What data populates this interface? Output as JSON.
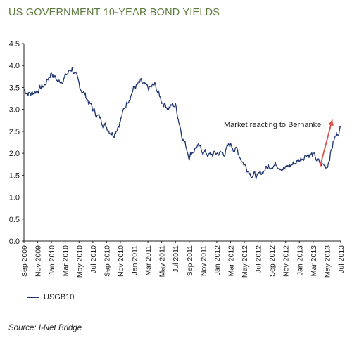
{
  "chart_data": {
    "type": "line",
    "title": "US GOVERNMENT 10-YEAR BOND YIELDS",
    "ylim": [
      0,
      4.5
    ],
    "yticks": [
      "0.0",
      "0.5",
      "1.0",
      "1.5",
      "2.0",
      "2.5",
      "3.0",
      "3.5",
      "4.0",
      "4.5"
    ],
    "yticks_values": [
      0,
      0.5,
      1.0,
      1.5,
      2.0,
      2.5,
      3.0,
      3.5,
      4.0,
      4.5
    ],
    "xticks": [
      "Sep 2009",
      "Nov 2009",
      "Jan 2010",
      "Mar 2010",
      "May 2010",
      "Jul 2010",
      "Sep 2010",
      "Nov 2010",
      "Jan 2011",
      "Mar 2011",
      "May 2011",
      "Jul 2011",
      "Sep 2011",
      "Nov 2011",
      "Jan 2012",
      "Mar 2012",
      "May 2012",
      "Jul 2012",
      "Sep 2012",
      "Nov 2012",
      "Jan 2013",
      "Mar 2013",
      "May 2013",
      "Jul 2013"
    ],
    "grid": false,
    "legend_position": "bottom-left",
    "series": [
      {
        "name": "USGB10",
        "color": "#1f3570",
        "x": [
          "Sep 2009",
          "Oct 2009",
          "Nov 2009",
          "Dec 2009",
          "Jan 2010",
          "Feb 2010",
          "Mar 2010",
          "Apr 2010",
          "May 2010",
          "Jun 2010",
          "Jul 2010",
          "Aug 2010",
          "Sep 2010",
          "Oct 2010",
          "Nov 2010",
          "Dec 2010",
          "Jan 2011",
          "Feb 2011",
          "Mar 2011",
          "Apr 2011",
          "May 2011",
          "Jun 2011",
          "Jul 2011",
          "Aug 2011",
          "Sep 2011",
          "Oct 2011",
          "Nov 2011",
          "Dec 2011",
          "Jan 2012",
          "Feb 2012",
          "Mar 2012",
          "Apr 2012",
          "May 2012",
          "Jun 2012",
          "Jul 2012",
          "Aug 2012",
          "Sep 2012",
          "Oct 2012",
          "Nov 2012",
          "Dec 2012",
          "Jan 2013",
          "Feb 2013",
          "Mar 2013",
          "Apr 2013",
          "May 2013",
          "Jun 2013",
          "Jul 2013"
        ],
        "values": [
          3.45,
          3.35,
          3.45,
          3.55,
          3.85,
          3.62,
          3.75,
          3.95,
          3.55,
          3.3,
          3.0,
          2.8,
          2.6,
          2.45,
          2.75,
          3.2,
          3.5,
          3.6,
          3.45,
          3.55,
          3.2,
          3.05,
          3.1,
          2.4,
          1.95,
          2.15,
          2.05,
          1.95,
          2.0,
          2.0,
          2.2,
          2.05,
          1.75,
          1.55,
          1.45,
          1.65,
          1.75,
          1.75,
          1.65,
          1.75,
          1.85,
          2.0,
          1.95,
          1.75,
          1.7,
          2.3,
          2.6
        ]
      }
    ],
    "annotation": {
      "text": "Market reacting to Bernanke",
      "arrow_from": [
        "Apr 2013",
        1.7
      ],
      "arrow_to": [
        "Jul 2013",
        2.7
      ],
      "arrow_color": "#d9534f"
    },
    "source": "Source: I-Net Bridge"
  }
}
